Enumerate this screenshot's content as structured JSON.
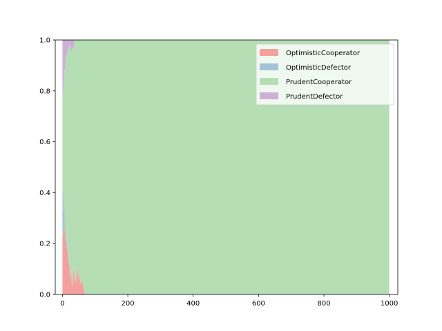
{
  "chart_data": {
    "type": "area",
    "stacked": true,
    "title": "",
    "xlabel": "",
    "ylabel": "",
    "xlim": [
      -22,
      1026
    ],
    "ylim": [
      0.0,
      1.0
    ],
    "x_ticks": [
      0,
      200,
      400,
      600,
      800,
      1000
    ],
    "x_tick_labels": [
      "0",
      "200",
      "400",
      "600",
      "800",
      "1000"
    ],
    "y_ticks": [
      0.0,
      0.2,
      0.4,
      0.6,
      0.8,
      1.0
    ],
    "y_tick_labels": [
      "0.0",
      "0.2",
      "0.4",
      "0.6",
      "0.8",
      "1.0"
    ],
    "grid": false,
    "legend_position": "top-right",
    "x": [
      0,
      2,
      4,
      6,
      8,
      10,
      12,
      14,
      16,
      18,
      20,
      22,
      24,
      26,
      28,
      30,
      32,
      34,
      36,
      38,
      40,
      42,
      44,
      46,
      48,
      50,
      52,
      55,
      58,
      60,
      62,
      64,
      66,
      70,
      80,
      100,
      200,
      400,
      600,
      800,
      1000
    ],
    "series": [
      {
        "name": "OptimisticCooperator",
        "color": "#f4a09e",
        "values": [
          0.22,
          0.25,
          0.24,
          0.29,
          0.23,
          0.21,
          0.18,
          0.2,
          0.16,
          0.12,
          0.14,
          0.08,
          0.06,
          0.13,
          0.05,
          0.03,
          0.07,
          0.11,
          0.05,
          0.09,
          0.06,
          0.04,
          0.1,
          0.08,
          0.11,
          0.05,
          0.09,
          0.04,
          0.07,
          0.05,
          0.04,
          0.03,
          0.01,
          0.0,
          0.0,
          0.0,
          0.0,
          0.0,
          0.0,
          0.0,
          0.0
        ]
      },
      {
        "name": "OptimisticDefector",
        "color": "#a4c3d8",
        "values": [
          0.2,
          0.16,
          0.08,
          0.05,
          0.04,
          0.03,
          0.02,
          0.02,
          0.01,
          0.01,
          0.01,
          0.0,
          0.0,
          0.0,
          0.0,
          0.0,
          0.0,
          0.0,
          0.0,
          0.0,
          0.0,
          0.0,
          0.0,
          0.0,
          0.0,
          0.0,
          0.0,
          0.0,
          0.0,
          0.0,
          0.0,
          0.0,
          0.0,
          0.0,
          0.0,
          0.0,
          0.0,
          0.0,
          0.0,
          0.0,
          0.0
        ]
      },
      {
        "name": "PrudentCooperator",
        "color": "#b6deb5",
        "values": [
          0.32,
          0.39,
          0.5,
          0.54,
          0.62,
          0.68,
          0.74,
          0.72,
          0.79,
          0.84,
          0.82,
          0.9,
          0.91,
          0.82,
          0.91,
          0.94,
          0.9,
          0.85,
          0.93,
          0.91,
          0.94,
          0.96,
          0.9,
          0.92,
          0.89,
          0.95,
          0.91,
          0.96,
          0.93,
          0.95,
          0.96,
          0.97,
          0.99,
          1.0,
          1.0,
          1.0,
          1.0,
          1.0,
          1.0,
          1.0,
          1.0
        ]
      },
      {
        "name": "PrudentDefector",
        "color": "#cdb1d5",
        "values": [
          0.26,
          0.2,
          0.18,
          0.12,
          0.11,
          0.08,
          0.06,
          0.06,
          0.04,
          0.03,
          0.03,
          0.02,
          0.03,
          0.05,
          0.04,
          0.03,
          0.03,
          0.04,
          0.02,
          0.0,
          0.0,
          0.0,
          0.0,
          0.0,
          0.0,
          0.0,
          0.0,
          0.0,
          0.0,
          0.0,
          0.0,
          0.0,
          0.0,
          0.0,
          0.0,
          0.0,
          0.0,
          0.0,
          0.0,
          0.0,
          0.0
        ]
      }
    ]
  }
}
